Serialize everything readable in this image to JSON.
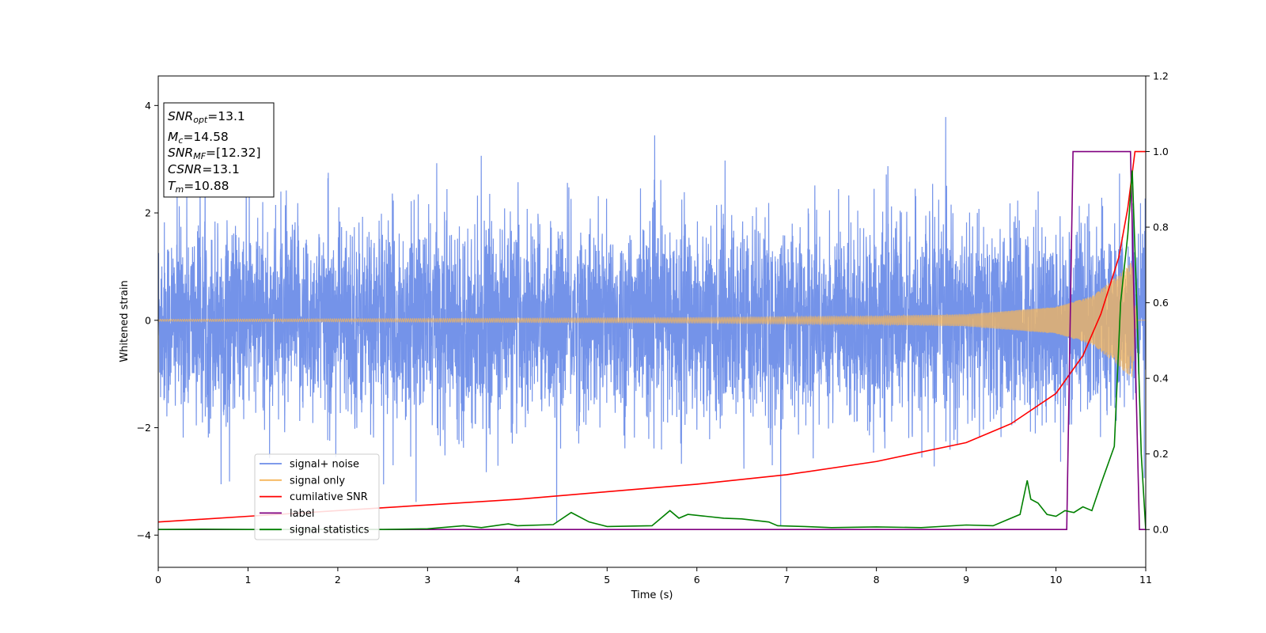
{
  "chart_data": {
    "type": "line",
    "xlabel": "Time (s)",
    "ylabel": "Whitened strain",
    "xlim": [
      0,
      11
    ],
    "ylim_left": [
      -4.6,
      4.55
    ],
    "ylim_right": [
      -0.1,
      1.2
    ],
    "x_ticks": [
      "0",
      "1",
      "2",
      "3",
      "4",
      "5",
      "6",
      "7",
      "8",
      "9",
      "10",
      "11"
    ],
    "y_ticks_left": [
      "−4",
      "−2",
      "0",
      "2",
      "4"
    ],
    "y_ticks_right": [
      "0.0",
      "0.2",
      "0.4",
      "0.6",
      "0.8",
      "1.0",
      "1.2"
    ],
    "grid": false,
    "legend_position": "lower-left",
    "annotation": [
      {
        "base": "SNR",
        "sub": "opt",
        "value": "=13.1"
      },
      {
        "base": "M",
        "sub": "c",
        "value": "=14.58"
      },
      {
        "base": "SNR",
        "sub": "MF",
        "value": "=[12.32]"
      },
      {
        "base": "CSNR",
        "sub": "",
        "value": "=13.1"
      },
      {
        "base": "T",
        "sub": "m",
        "value": "=10.88"
      }
    ],
    "series": [
      {
        "name": "signal+ noise",
        "axis": "left",
        "color": "#6d8de8",
        "description_values": {
          "noise_std": 0.9,
          "range": [
            -4.2,
            4.1
          ]
        }
      },
      {
        "name": "signal only",
        "axis": "left",
        "color": "#f5b55a",
        "envelope": {
          "t": [
            0,
            2,
            4,
            6,
            8,
            9,
            10,
            10.4,
            10.7,
            10.85,
            10.9,
            11
          ],
          "amp": [
            0.02,
            0.03,
            0.04,
            0.05,
            0.08,
            0.11,
            0.25,
            0.45,
            0.85,
            1.1,
            0.0,
            0.0
          ]
        }
      },
      {
        "name": "cumilative SNR",
        "axis": "right",
        "color": "#ff0000",
        "x": [
          0,
          1,
          2,
          3,
          4,
          5,
          6,
          7,
          8,
          9,
          9.5,
          10,
          10.3,
          10.5,
          10.7,
          10.8,
          10.88,
          11
        ],
        "y": [
          0.02,
          0.035,
          0.05,
          0.065,
          0.08,
          0.1,
          0.12,
          0.145,
          0.18,
          0.23,
          0.28,
          0.36,
          0.46,
          0.57,
          0.72,
          0.85,
          1.0,
          1.0
        ]
      },
      {
        "name": "label",
        "axis": "right",
        "color": "#800080",
        "x": [
          0,
          10.12,
          10.19,
          10.8,
          10.83,
          10.93,
          11
        ],
        "y": [
          0.0,
          0.0,
          1.0,
          1.0,
          1.0,
          0.0,
          0.0
        ]
      },
      {
        "name": "signal statistics",
        "axis": "right",
        "color": "#008000",
        "x": [
          0,
          0.5,
          1,
          1.5,
          2,
          2.5,
          3,
          3.4,
          3.6,
          3.9,
          4,
          4.4,
          4.6,
          4.8,
          5,
          5.5,
          5.7,
          5.8,
          5.9,
          6.1,
          6.3,
          6.5,
          6.8,
          6.9,
          7.2,
          7.5,
          8,
          8.5,
          9,
          9.3,
          9.45,
          9.6,
          9.68,
          9.72,
          9.8,
          9.9,
          10,
          10.1,
          10.2,
          10.3,
          10.4,
          10.5,
          10.65,
          10.72,
          10.8,
          10.85,
          10.9,
          10.95,
          11
        ],
        "y": [
          0.0,
          0.001,
          0.0,
          0.0,
          0.001,
          0.0,
          0.002,
          0.01,
          0.005,
          0.015,
          0.01,
          0.013,
          0.045,
          0.02,
          0.008,
          0.01,
          0.05,
          0.03,
          0.04,
          0.035,
          0.03,
          0.028,
          0.02,
          0.01,
          0.008,
          0.005,
          0.007,
          0.005,
          0.012,
          0.01,
          0.025,
          0.04,
          0.13,
          0.08,
          0.07,
          0.04,
          0.035,
          0.05,
          0.045,
          0.06,
          0.05,
          0.12,
          0.22,
          0.6,
          0.78,
          0.95,
          0.6,
          0.2,
          0.0
        ]
      }
    ]
  }
}
